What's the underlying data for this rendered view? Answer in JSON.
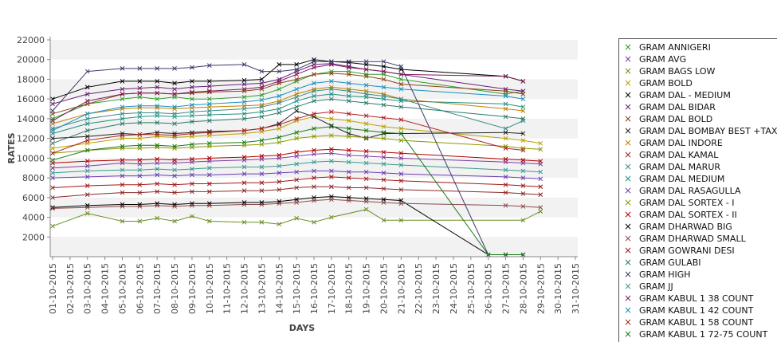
{
  "chart_data": {
    "type": "line",
    "xlabel": "DAYS",
    "ylabel": "RATES",
    "ylim": [
      0,
      22000
    ],
    "yticks": [
      2000,
      4000,
      6000,
      8000,
      10000,
      12000,
      14000,
      16000,
      18000,
      20000,
      22000
    ],
    "categories": [
      "01-10-2015",
      "02-10-2015",
      "03-10-2015",
      "04-10-2015",
      "05-10-2015",
      "06-10-2015",
      "07-10-2015",
      "08-10-2015",
      "09-10-2015",
      "10-10-2015",
      "11-10-2015",
      "12-10-2015",
      "13-10-2015",
      "14-10-2015",
      "15-10-2015",
      "16-10-2015",
      "17-10-2015",
      "18-10-2015",
      "19-10-2015",
      "20-10-2015",
      "21-10-2015",
      "22-10-2015",
      "23-10-2015",
      "24-10-2015",
      "25-10-2015",
      "26-10-2015",
      "27-10-2015",
      "28-10-2015",
      "29-10-2015",
      "30-10-2015",
      "31-10-2015"
    ],
    "grid": "alternating horizontal bands",
    "legend_position": "right",
    "series": [
      {
        "name": "GRAM ANNIGERI",
        "color": "#2ca02c",
        "values": [
          14000,
          null,
          15500,
          null,
          16000,
          16200,
          16000,
          16200,
          16000,
          16000,
          null,
          16200,
          16400,
          17000,
          17800,
          18500,
          18800,
          18800,
          18500,
          18500,
          18000,
          null,
          null,
          null,
          null,
          null,
          16500,
          16800,
          null,
          null,
          null
        ]
      },
      {
        "name": "GRAM AVG",
        "color": "#7b3fa0",
        "values": [
          9000,
          null,
          9200,
          null,
          9500,
          9400,
          9500,
          9500,
          9600,
          9700,
          null,
          9800,
          9900,
          10000,
          10200,
          10400,
          10500,
          10300,
          10200,
          10100,
          10000,
          null,
          null,
          null,
          null,
          null,
          9600,
          9500,
          9400,
          null,
          null
        ]
      },
      {
        "name": "GRAM BAGS LOW",
        "color": "#6b8e23",
        "values": [
          3100,
          null,
          4400,
          null,
          3600,
          3600,
          3900,
          3600,
          4100,
          3600,
          null,
          3500,
          3500,
          3300,
          3900,
          3500,
          4000,
          null,
          4800,
          3700,
          3700,
          null,
          null,
          null,
          null,
          null,
          null,
          3700,
          4600,
          null,
          null
        ]
      },
      {
        "name": "GRAM BOLD",
        "color": "#b8a000",
        "values": [
          11000,
          null,
          11500,
          null,
          12000,
          12000,
          12200,
          12100,
          12200,
          12300,
          null,
          12500,
          12700,
          13000,
          13800,
          14200,
          14000,
          13800,
          13500,
          13200,
          13000,
          null,
          null,
          null,
          null,
          null,
          12000,
          11800,
          11500,
          null,
          null
        ]
      },
      {
        "name": "GRAM DAL - MEDIUM",
        "color": "#000000",
        "values": [
          16000,
          null,
          17200,
          null,
          17800,
          17800,
          17800,
          17600,
          17800,
          17800,
          null,
          17900,
          18000,
          19500,
          19500,
          20000,
          19800,
          19700,
          19500,
          19300,
          19000,
          null,
          null,
          null,
          null,
          null,
          18300,
          17800,
          null,
          null,
          null
        ]
      },
      {
        "name": "GRAM DAL BIDAR",
        "color": "#6a1f7a",
        "values": [
          15500,
          null,
          16500,
          null,
          17000,
          17100,
          17200,
          17000,
          17200,
          17300,
          null,
          17500,
          17600,
          18000,
          18800,
          19500,
          19600,
          19300,
          19000,
          18800,
          18500,
          null,
          null,
          null,
          null,
          null,
          17000,
          16800,
          null,
          null,
          null
        ]
      },
      {
        "name": "GRAM DAL BOLD",
        "color": "#8b4513",
        "values": [
          14500,
          null,
          15500,
          null,
          16500,
          16600,
          16600,
          16500,
          16600,
          16700,
          null,
          16800,
          17000,
          17600,
          18000,
          18500,
          18600,
          18500,
          18300,
          18000,
          17500,
          null,
          null,
          null,
          null,
          null,
          16800,
          16500,
          null,
          null,
          null
        ]
      },
      {
        "name": "GRAM DAL BOMBAY BEST +TAX",
        "color": "#222222",
        "values": [
          12000,
          null,
          12200,
          null,
          12500,
          12400,
          12600,
          12500,
          12600,
          12700,
          null,
          12800,
          13000,
          13500,
          14800,
          14200,
          13300,
          12500,
          12000,
          12500,
          12500,
          null,
          null,
          null,
          null,
          null,
          12600,
          12500,
          null,
          null,
          null
        ]
      },
      {
        "name": "GRAM DAL INDORE",
        "color": "#c08000",
        "values": [
          13500,
          null,
          14500,
          null,
          15000,
          15100,
          15100,
          15000,
          15100,
          15200,
          null,
          15300,
          15400,
          15800,
          16500,
          17000,
          17200,
          17000,
          16800,
          16500,
          16000,
          null,
          null,
          null,
          null,
          null,
          15000,
          14800,
          null,
          null,
          null
        ]
      },
      {
        "name": "GRAM DAL KAMAL",
        "color": "#8b2a2a",
        "values": [
          6000,
          null,
          6300,
          null,
          6500,
          6500,
          6600,
          6500,
          6600,
          6600,
          null,
          6700,
          6700,
          6800,
          7000,
          7100,
          7100,
          7000,
          7000,
          6900,
          6800,
          null,
          null,
          null,
          null,
          null,
          6500,
          6400,
          6300,
          null,
          null
        ]
      },
      {
        "name": "GRAM DAL MARUR",
        "color": "#3a8a8a",
        "values": [
          13000,
          null,
          14000,
          null,
          14500,
          14600,
          14600,
          14500,
          14700,
          14800,
          null,
          15000,
          15200,
          15600,
          16200,
          16800,
          17000,
          16800,
          16500,
          16300,
          16000,
          null,
          null,
          null,
          null,
          null,
          13000,
          13800,
          null,
          null,
          null
        ]
      },
      {
        "name": "GRAM DAL MEDIUM",
        "color": "#1f8f7f",
        "values": [
          12500,
          null,
          13500,
          null,
          14000,
          14200,
          14300,
          14200,
          14300,
          14400,
          null,
          14500,
          14700,
          15000,
          15800,
          16300,
          16500,
          16300,
          16200,
          16000,
          15800,
          null,
          null,
          null,
          null,
          null,
          15500,
          15200,
          null,
          null,
          null
        ]
      },
      {
        "name": "GRAM DAL RASAGULLA",
        "color": "#6a3fb0",
        "values": [
          8000,
          null,
          8100,
          null,
          8200,
          8200,
          8300,
          8200,
          8300,
          8300,
          null,
          8400,
          8400,
          8500,
          8600,
          8700,
          8700,
          8600,
          8600,
          8500,
          8400,
          null,
          null,
          null,
          null,
          null,
          8100,
          8000,
          7900,
          null,
          null
        ]
      },
      {
        "name": "GRAM DAL SORTEX  - I",
        "color": "#8a9a00",
        "values": [
          10500,
          null,
          10800,
          null,
          11000,
          11000,
          11100,
          11000,
          11100,
          11200,
          null,
          11300,
          11400,
          11600,
          12000,
          12200,
          12300,
          12200,
          12100,
          12000,
          11800,
          null,
          null,
          null,
          null,
          null,
          11200,
          11000,
          10900,
          null,
          null
        ]
      },
      {
        "name": "GRAM DAL SORTEX - II",
        "color": "#b00000",
        "values": [
          9500,
          null,
          9700,
          null,
          9800,
          9800,
          9900,
          9800,
          9900,
          10000,
          null,
          10100,
          10200,
          10300,
          10600,
          10800,
          10900,
          10800,
          10700,
          10600,
          10500,
          null,
          null,
          null,
          null,
          null,
          9900,
          9800,
          9700,
          null,
          null
        ]
      },
      {
        "name": "GRAM DHARWAD BIG",
        "color": "#000000",
        "values": [
          5000,
          null,
          5200,
          null,
          5300,
          5300,
          5400,
          5300,
          5400,
          5400,
          null,
          5500,
          5500,
          5600,
          5800,
          6000,
          6100,
          6000,
          5900,
          5800,
          5700,
          null,
          null,
          null,
          null,
          200,
          200,
          200,
          null,
          null,
          null
        ]
      },
      {
        "name": "GRAM DHARWAD SMALL",
        "color": "#8b4a4a",
        "values": [
          4900,
          null,
          5000,
          null,
          5100,
          5100,
          5200,
          5100,
          5200,
          5200,
          null,
          5300,
          5300,
          5400,
          5500,
          5700,
          5800,
          5700,
          5600,
          5500,
          5400,
          null,
          null,
          null,
          null,
          null,
          5200,
          5100,
          5000,
          null,
          null
        ]
      },
      {
        "name": "GRAM GOWRANI DESI",
        "color": "#a01818",
        "values": [
          7000,
          null,
          7200,
          null,
          7300,
          7300,
          7400,
          7300,
          7400,
          7400,
          null,
          7500,
          7500,
          7600,
          7800,
          8000,
          8100,
          8000,
          7900,
          7800,
          7700,
          null,
          null,
          null,
          null,
          null,
          7300,
          7200,
          7100,
          null,
          null
        ]
      },
      {
        "name": "GRAM GULABI",
        "color": "#2a7a6a",
        "values": [
          11500,
          null,
          12800,
          null,
          13500,
          13600,
          13600,
          13500,
          13700,
          13800,
          null,
          14000,
          14200,
          14600,
          15200,
          15800,
          16000,
          15800,
          15600,
          15400,
          15200,
          null,
          null,
          null,
          null,
          null,
          14200,
          14000,
          null,
          null,
          null
        ]
      },
      {
        "name": "GRAM HIGH",
        "color": "#3a3a6a",
        "values": [
          14800,
          null,
          18800,
          null,
          19100,
          19100,
          19100,
          19100,
          19200,
          19400,
          null,
          19500,
          18800,
          18800,
          19000,
          19800,
          19800,
          19800,
          19800,
          19800,
          19300,
          null,
          null,
          null,
          null,
          200,
          200,
          200,
          null,
          null,
          null
        ]
      },
      {
        "name": "GRAM JJ",
        "color": "#3a9a8a",
        "values": [
          8500,
          null,
          8700,
          null,
          8800,
          8800,
          8900,
          8800,
          8900,
          9000,
          null,
          9100,
          9100,
          9200,
          9400,
          9600,
          9700,
          9600,
          9500,
          9400,
          9300,
          null,
          null,
          null,
          null,
          null,
          8800,
          8700,
          8600,
          null,
          null
        ]
      },
      {
        "name": "GRAM KABUL 1 38 COUNT",
        "color": "#7a1a5a",
        "values": [
          13800,
          null,
          15800,
          null,
          16500,
          16600,
          16600,
          16500,
          16700,
          16800,
          null,
          17000,
          17200,
          17800,
          18500,
          19200,
          19500,
          19200,
          19000,
          18800,
          18500,
          null,
          null,
          null,
          null,
          null,
          18300,
          17800,
          null,
          null,
          null
        ]
      },
      {
        "name": "GRAM KABUL 1 42 COUNT",
        "color": "#1a8fbf",
        "values": [
          12800,
          null,
          14500,
          null,
          15200,
          15300,
          15300,
          15200,
          15400,
          15500,
          null,
          15700,
          15900,
          16300,
          17000,
          17600,
          17800,
          17600,
          17400,
          17200,
          17000,
          null,
          null,
          null,
          null,
          null,
          16300,
          16000,
          null,
          null,
          null
        ]
      },
      {
        "name": "GRAM KABUL 1 58 COUNT",
        "color": "#b02020",
        "values": [
          10500,
          null,
          11800,
          null,
          12300,
          12400,
          12400,
          12300,
          12500,
          12600,
          null,
          12800,
          13000,
          13400,
          14000,
          14500,
          14700,
          14500,
          14300,
          14100,
          13900,
          null,
          null,
          null,
          null,
          null,
          11000,
          10800,
          null,
          null,
          null
        ]
      },
      {
        "name": "GRAM KABUL 1 72-75 COUNT",
        "color": "#1a7a1a",
        "values": [
          9800,
          null,
          10800,
          null,
          11200,
          11300,
          11300,
          11200,
          11400,
          11500,
          null,
          11600,
          11800,
          12100,
          12600,
          13000,
          13200,
          13000,
          12800,
          12600,
          12500,
          null,
          null,
          null,
          null,
          200,
          200,
          200,
          null,
          null,
          null
        ]
      }
    ]
  }
}
